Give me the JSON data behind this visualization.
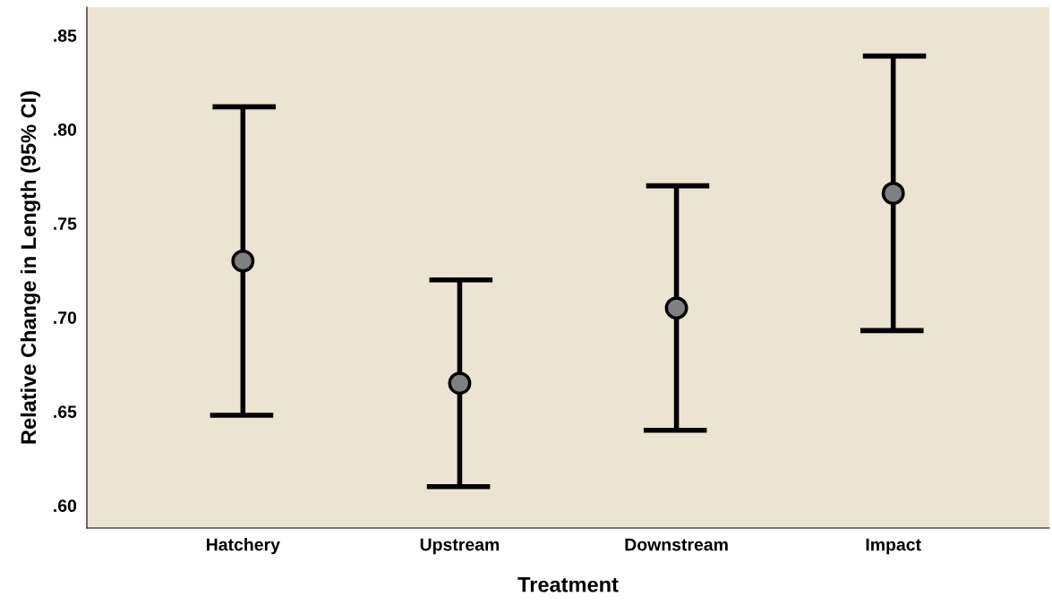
{
  "chart_data": {
    "type": "scatter",
    "xlabel": "Treatment",
    "ylabel": "Relative Change in Length (95% CI)",
    "categories": [
      "Hatchery",
      "Upstream",
      "Downstream",
      "Impact"
    ],
    "values": [
      0.73,
      0.665,
      0.705,
      0.766
    ],
    "errors": [
      [
        0.648,
        0.812
      ],
      [
        0.61,
        0.72
      ],
      [
        0.64,
        0.77
      ],
      [
        0.693,
        0.839
      ]
    ],
    "color": "#808080",
    "marker": "circle",
    "ylim": [
      0.588,
      0.865
    ],
    "yticks": [
      {
        "value": 0.6,
        "label": ".60"
      },
      {
        "value": 0.65,
        "label": ".65"
      },
      {
        "value": 0.7,
        "label": ".70"
      },
      {
        "value": 0.75,
        "label": ".75"
      },
      {
        "value": 0.8,
        "label": ".80"
      },
      {
        "value": 0.85,
        "label": ".85"
      }
    ],
    "grid": false,
    "legend": false
  }
}
